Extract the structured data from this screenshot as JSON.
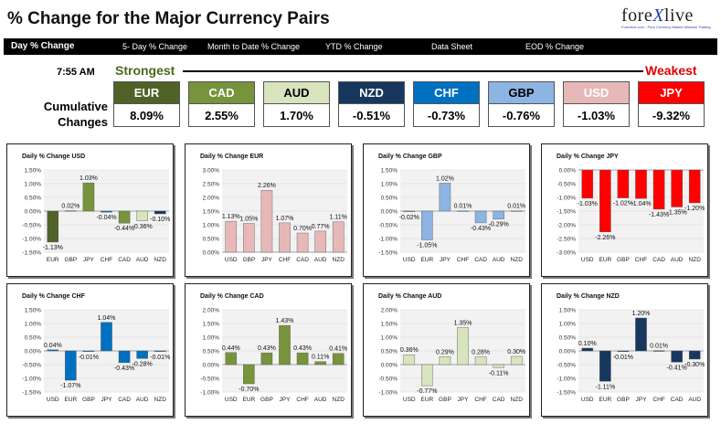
{
  "header": {
    "title": "% Change for the Major Currency Pairs",
    "logo_text": "forexlive",
    "logo_tagline": "Forexlive.com - Pure Currency Market Wisdom Trading"
  },
  "nav": {
    "items": [
      "Day % Change",
      "5- Day % Change",
      "Month to Date % Change",
      "YTD % Change",
      "Data Sheet",
      "EOD % Change"
    ]
  },
  "ranking": {
    "time": "7:55 AM",
    "strongest_label": "Strongest",
    "weakest_label": "Weakest",
    "row_label_line1": "Cumulative",
    "row_label_line2": "Changes",
    "currencies": [
      {
        "code": "EUR",
        "value": "8.09%",
        "bg": "#4f6228",
        "fg": "#ffffff"
      },
      {
        "code": "CAD",
        "value": "2.55%",
        "bg": "#77933c",
        "fg": "#ffffff"
      },
      {
        "code": "AUD",
        "value": "1.70%",
        "bg": "#d7e4bd",
        "fg": "#000000"
      },
      {
        "code": "NZD",
        "value": "-0.51%",
        "bg": "#17375e",
        "fg": "#ffffff"
      },
      {
        "code": "CHF",
        "value": "-0.73%",
        "bg": "#0070c0",
        "fg": "#ffffff"
      },
      {
        "code": "GBP",
        "value": "-0.76%",
        "bg": "#8db4e2",
        "fg": "#000000"
      },
      {
        "code": "USD",
        "value": "-1.03%",
        "bg": "#e6b9b8",
        "fg": "#ffffff"
      },
      {
        "code": "JPY",
        "value": "-9.32%",
        "bg": "#ff0000",
        "fg": "#ffffff"
      }
    ]
  },
  "chart_data": [
    {
      "type": "bar",
      "title": "Daily % Change USD",
      "categories": [
        "EUR",
        "GBP",
        "JPY",
        "CHF",
        "CAD",
        "AUD",
        "NZD"
      ],
      "values": [
        -1.13,
        0.02,
        1.03,
        -0.04,
        -0.44,
        -0.36,
        -0.1
      ],
      "labels": [
        "-1.13%",
        "0.02%",
        "1.03%",
        "-0.04%",
        "-0.44%",
        "-0.36%",
        "-0.10%"
      ],
      "ylim": [
        -1.5,
        1.5
      ],
      "yticks": [
        "1.50%",
        "1.00%",
        "0.50%",
        "0.00%",
        "-0.50%",
        "-1.00%",
        "-1.50%"
      ],
      "ytick_values": [
        1.5,
        1.0,
        0.5,
        0,
        -0.5,
        -1.0,
        -1.5
      ],
      "colors": [
        "#4f6228",
        "#8db4e2",
        "#77933c",
        "#0070c0",
        "#77933c",
        "#d7e4bd",
        "#17375e"
      ]
    },
    {
      "type": "bar",
      "title": "Daily % Change EUR",
      "categories": [
        "USD",
        "GBP",
        "JPY",
        "CHF",
        "CAD",
        "AUD",
        "NZD"
      ],
      "values": [
        1.13,
        1.05,
        2.26,
        1.07,
        0.7,
        0.77,
        1.11
      ],
      "labels": [
        "1.13%",
        "1.05%",
        "2.26%",
        "1.07%",
        "0.70%",
        "0.77%",
        "1.11%"
      ],
      "ylim": [
        0,
        3.0
      ],
      "yticks": [
        "3.00%",
        "2.50%",
        "2.00%",
        "1.50%",
        "1.00%",
        "0.50%",
        "0.00%"
      ],
      "ytick_values": [
        3.0,
        2.5,
        2.0,
        1.5,
        1.0,
        0.5,
        0
      ],
      "colors": [
        "#e6b9b8",
        "#e6b9b8",
        "#e6b9b8",
        "#e6b9b8",
        "#e6b9b8",
        "#e6b9b8",
        "#e6b9b8"
      ]
    },
    {
      "type": "bar",
      "title": "Daily % Change GBP",
      "categories": [
        "USD",
        "EUR",
        "JPY",
        "CHF",
        "CAD",
        "AUD",
        "NZD"
      ],
      "values": [
        -0.02,
        -1.05,
        1.02,
        0.01,
        -0.43,
        -0.29,
        0.01
      ],
      "labels": [
        "-0.02%",
        "-1.05%",
        "1.02%",
        "0.01%",
        "-0.43%",
        "-0.29%",
        "0.01%"
      ],
      "ylim": [
        -1.5,
        1.5
      ],
      "yticks": [
        "1.50%",
        "1.00%",
        "0.50%",
        "0.00%",
        "-0.50%",
        "-1.00%",
        "-1.50%"
      ],
      "ytick_values": [
        1.5,
        1.0,
        0.5,
        0,
        -0.5,
        -1.0,
        -1.5
      ],
      "colors": [
        "#8db4e2",
        "#8db4e2",
        "#8db4e2",
        "#8db4e2",
        "#8db4e2",
        "#8db4e2",
        "#8db4e2"
      ]
    },
    {
      "type": "bar",
      "title": "Daily % Change JPY",
      "categories": [
        "USD",
        "EUR",
        "GBP",
        "CHF",
        "CAD",
        "AUD",
        "NZD"
      ],
      "values": [
        -1.03,
        -2.26,
        -1.02,
        -1.04,
        -1.43,
        -1.35,
        -1.2
      ],
      "labels": [
        "-1.03%",
        "-2.26%",
        "-1.02%",
        "-1.04%",
        "-1.43%",
        "-1.35%",
        "-1.20%"
      ],
      "ylim": [
        -3.0,
        0
      ],
      "yticks": [
        "0.00%",
        "-0.50%",
        "-1.00%",
        "-1.50%",
        "-2.00%",
        "-2.50%",
        "-3.00%"
      ],
      "ytick_values": [
        0,
        -0.5,
        -1.0,
        -1.5,
        -2.0,
        -2.5,
        -3.0
      ],
      "colors": [
        "#ff0000",
        "#ff0000",
        "#ff0000",
        "#ff0000",
        "#ff0000",
        "#ff0000",
        "#ff0000"
      ]
    },
    {
      "type": "bar",
      "title": "Daily % Change CHF",
      "categories": [
        "USD",
        "EUR",
        "GBP",
        "JPY",
        "CAD",
        "AUD",
        "NZD"
      ],
      "values": [
        0.04,
        -1.07,
        -0.01,
        1.04,
        -0.43,
        -0.28,
        -0.01
      ],
      "labels": [
        "0.04%",
        "-1.07%",
        "-0.01%",
        "1.04%",
        "-0.43%",
        "-0.28%",
        "-0.01%"
      ],
      "ylim": [
        -1.5,
        1.5
      ],
      "yticks": [
        "1.50%",
        "1.00%",
        "0.50%",
        "0.00%",
        "-0.50%",
        "-1.00%",
        "-1.50%"
      ],
      "ytick_values": [
        1.5,
        1.0,
        0.5,
        0,
        -0.5,
        -1.0,
        -1.5
      ],
      "colors": [
        "#0070c0",
        "#0070c0",
        "#0070c0",
        "#0070c0",
        "#0070c0",
        "#0070c0",
        "#0070c0"
      ]
    },
    {
      "type": "bar",
      "title": "Daily % Change CAD",
      "categories": [
        "USD",
        "EUR",
        "GBP",
        "JPY",
        "CHF",
        "AUD",
        "NZD"
      ],
      "values": [
        0.44,
        -0.7,
        0.43,
        1.43,
        0.43,
        0.11,
        0.41
      ],
      "labels": [
        "0.44%",
        "-0.70%",
        "0.43%",
        "1.43%",
        "0.43%",
        "0.11%",
        "0.41%"
      ],
      "ylim": [
        -1.0,
        2.0
      ],
      "yticks": [
        "2.00%",
        "1.50%",
        "1.00%",
        "0.50%",
        "0.00%",
        "-0.50%",
        "-1.00%"
      ],
      "ytick_values": [
        2.0,
        1.5,
        1.0,
        0.5,
        0,
        -0.5,
        -1.0
      ],
      "colors": [
        "#77933c",
        "#77933c",
        "#77933c",
        "#77933c",
        "#77933c",
        "#77933c",
        "#77933c"
      ]
    },
    {
      "type": "bar",
      "title": "Daily % Change AUD",
      "categories": [
        "USD",
        "EUR",
        "GBP",
        "JPY",
        "CHF",
        "CAD",
        "NZD"
      ],
      "values": [
        0.36,
        -0.77,
        0.29,
        1.35,
        0.28,
        -0.11,
        0.3
      ],
      "labels": [
        "0.36%",
        "-0.77%",
        "0.29%",
        "1.35%",
        "0.28%",
        "-0.11%",
        "0.30%"
      ],
      "ylim": [
        -1.0,
        2.0
      ],
      "yticks": [
        "2.00%",
        "1.50%",
        "1.00%",
        "0.50%",
        "0.00%",
        "-0.50%",
        "-1.00%"
      ],
      "ytick_values": [
        2.0,
        1.5,
        1.0,
        0.5,
        0,
        -0.5,
        -1.0
      ],
      "colors": [
        "#d7e4bd",
        "#d7e4bd",
        "#d7e4bd",
        "#d7e4bd",
        "#d7e4bd",
        "#d7e4bd",
        "#d7e4bd"
      ]
    },
    {
      "type": "bar",
      "title": "Daily % Change NZD",
      "categories": [
        "USD",
        "EUR",
        "GBP",
        "JPY",
        "CHF",
        "CAD",
        "AUD"
      ],
      "values": [
        0.1,
        -1.11,
        -0.01,
        1.2,
        0.01,
        -0.41,
        -0.3
      ],
      "labels": [
        "0.10%",
        "-1.11%",
        "-0.01%",
        "1.20%",
        "0.01%",
        "-0.41%",
        "-0.30%"
      ],
      "ylim": [
        -1.5,
        1.5
      ],
      "yticks": [
        "1.50%",
        "1.00%",
        "0.50%",
        "0.00%",
        "-0.50%",
        "-1.00%",
        "-1.50%"
      ],
      "ytick_values": [
        1.5,
        1.0,
        0.5,
        0,
        -0.5,
        -1.0,
        -1.5
      ],
      "colors": [
        "#17375e",
        "#17375e",
        "#17375e",
        "#17375e",
        "#17375e",
        "#17375e",
        "#17375e"
      ]
    }
  ]
}
